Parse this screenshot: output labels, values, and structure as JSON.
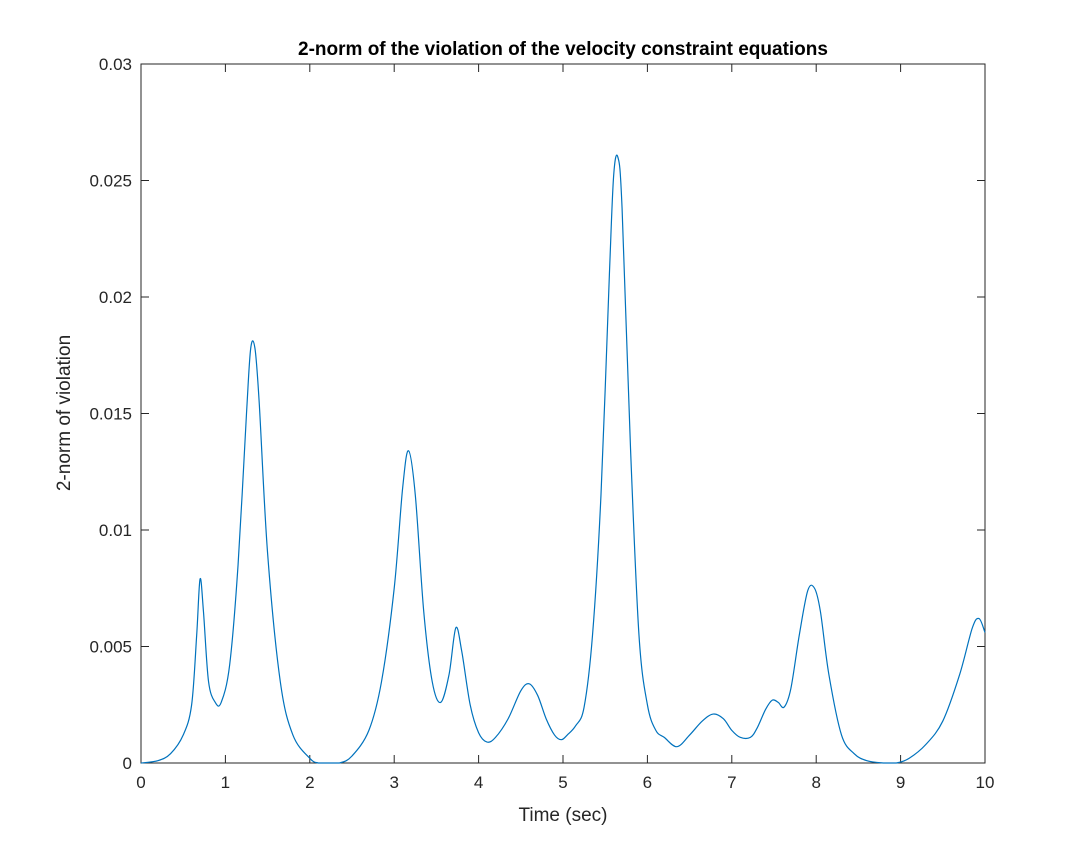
{
  "chart_data": {
    "type": "line",
    "title": "2-norm of the violation of the velocity constraint equations",
    "xlabel": "Time (sec)",
    "ylabel": "2-norm of violation",
    "xlim": [
      0,
      10
    ],
    "ylim": [
      0,
      0.03
    ],
    "xticks": [
      0,
      1,
      2,
      3,
      4,
      5,
      6,
      7,
      8,
      9,
      10
    ],
    "xtick_labels": [
      "0",
      "1",
      "2",
      "3",
      "4",
      "5",
      "6",
      "7",
      "8",
      "9",
      "10"
    ],
    "yticks": [
      0,
      0.005,
      0.01,
      0.015,
      0.02,
      0.025,
      0.03
    ],
    "ytick_labels": [
      "0",
      "0.005",
      "0.01",
      "0.015",
      "0.02",
      "0.025",
      "0.03"
    ],
    "grid": false,
    "legend": "none",
    "series": [
      {
        "color": "#0072BD",
        "x": [
          0,
          0.2,
          0.35,
          0.5,
          0.6,
          0.66,
          0.7,
          0.74,
          0.8,
          0.88,
          0.95,
          1.05,
          1.15,
          1.25,
          1.3,
          1.35,
          1.4,
          1.5,
          1.65,
          1.8,
          2.0,
          2.1,
          2.2,
          2.35,
          2.5,
          2.7,
          2.85,
          3.0,
          3.1,
          3.17,
          3.25,
          3.35,
          3.45,
          3.55,
          3.65,
          3.73,
          3.8,
          3.9,
          4.0,
          4.1,
          4.2,
          4.35,
          4.5,
          4.6,
          4.7,
          4.8,
          4.9,
          4.98,
          5.05,
          5.15,
          5.25,
          5.35,
          5.45,
          5.55,
          5.6,
          5.65,
          5.7,
          5.8,
          5.9,
          6.0,
          6.1,
          6.2,
          6.35,
          6.5,
          6.65,
          6.78,
          6.9,
          7.0,
          7.1,
          7.22,
          7.3,
          7.4,
          7.48,
          7.55,
          7.62,
          7.7,
          7.8,
          7.9,
          7.98,
          8.05,
          8.15,
          8.3,
          8.45,
          8.6,
          8.8,
          8.95,
          9.1,
          9.3,
          9.5,
          9.7,
          9.85,
          9.93,
          10.0
        ],
        "y": [
          0.0,
          0.0001,
          0.0004,
          0.0012,
          0.0025,
          0.0055,
          0.0079,
          0.0065,
          0.0035,
          0.0026,
          0.0026,
          0.0042,
          0.0085,
          0.015,
          0.0178,
          0.0178,
          0.0155,
          0.009,
          0.0035,
          0.0012,
          0.0002,
          0.0,
          0.0,
          0.0,
          0.0003,
          0.0014,
          0.0035,
          0.0075,
          0.0118,
          0.0134,
          0.0115,
          0.0065,
          0.0035,
          0.0026,
          0.0038,
          0.0058,
          0.0048,
          0.0025,
          0.0013,
          0.0009,
          0.0011,
          0.0019,
          0.0031,
          0.0034,
          0.0029,
          0.0019,
          0.0012,
          0.001,
          0.0012,
          0.0016,
          0.0024,
          0.0055,
          0.0115,
          0.021,
          0.0252,
          0.026,
          0.0238,
          0.0135,
          0.0055,
          0.0025,
          0.0014,
          0.0011,
          0.0007,
          0.0012,
          0.0018,
          0.0021,
          0.0019,
          0.0014,
          0.0011,
          0.0011,
          0.0015,
          0.0023,
          0.0027,
          0.0026,
          0.0024,
          0.0032,
          0.0055,
          0.0074,
          0.0075,
          0.0065,
          0.0038,
          0.0012,
          0.0004,
          0.0001,
          0.0,
          0.0,
          0.0002,
          0.0008,
          0.0018,
          0.0038,
          0.0058,
          0.0062,
          0.0056
        ]
      }
    ]
  }
}
